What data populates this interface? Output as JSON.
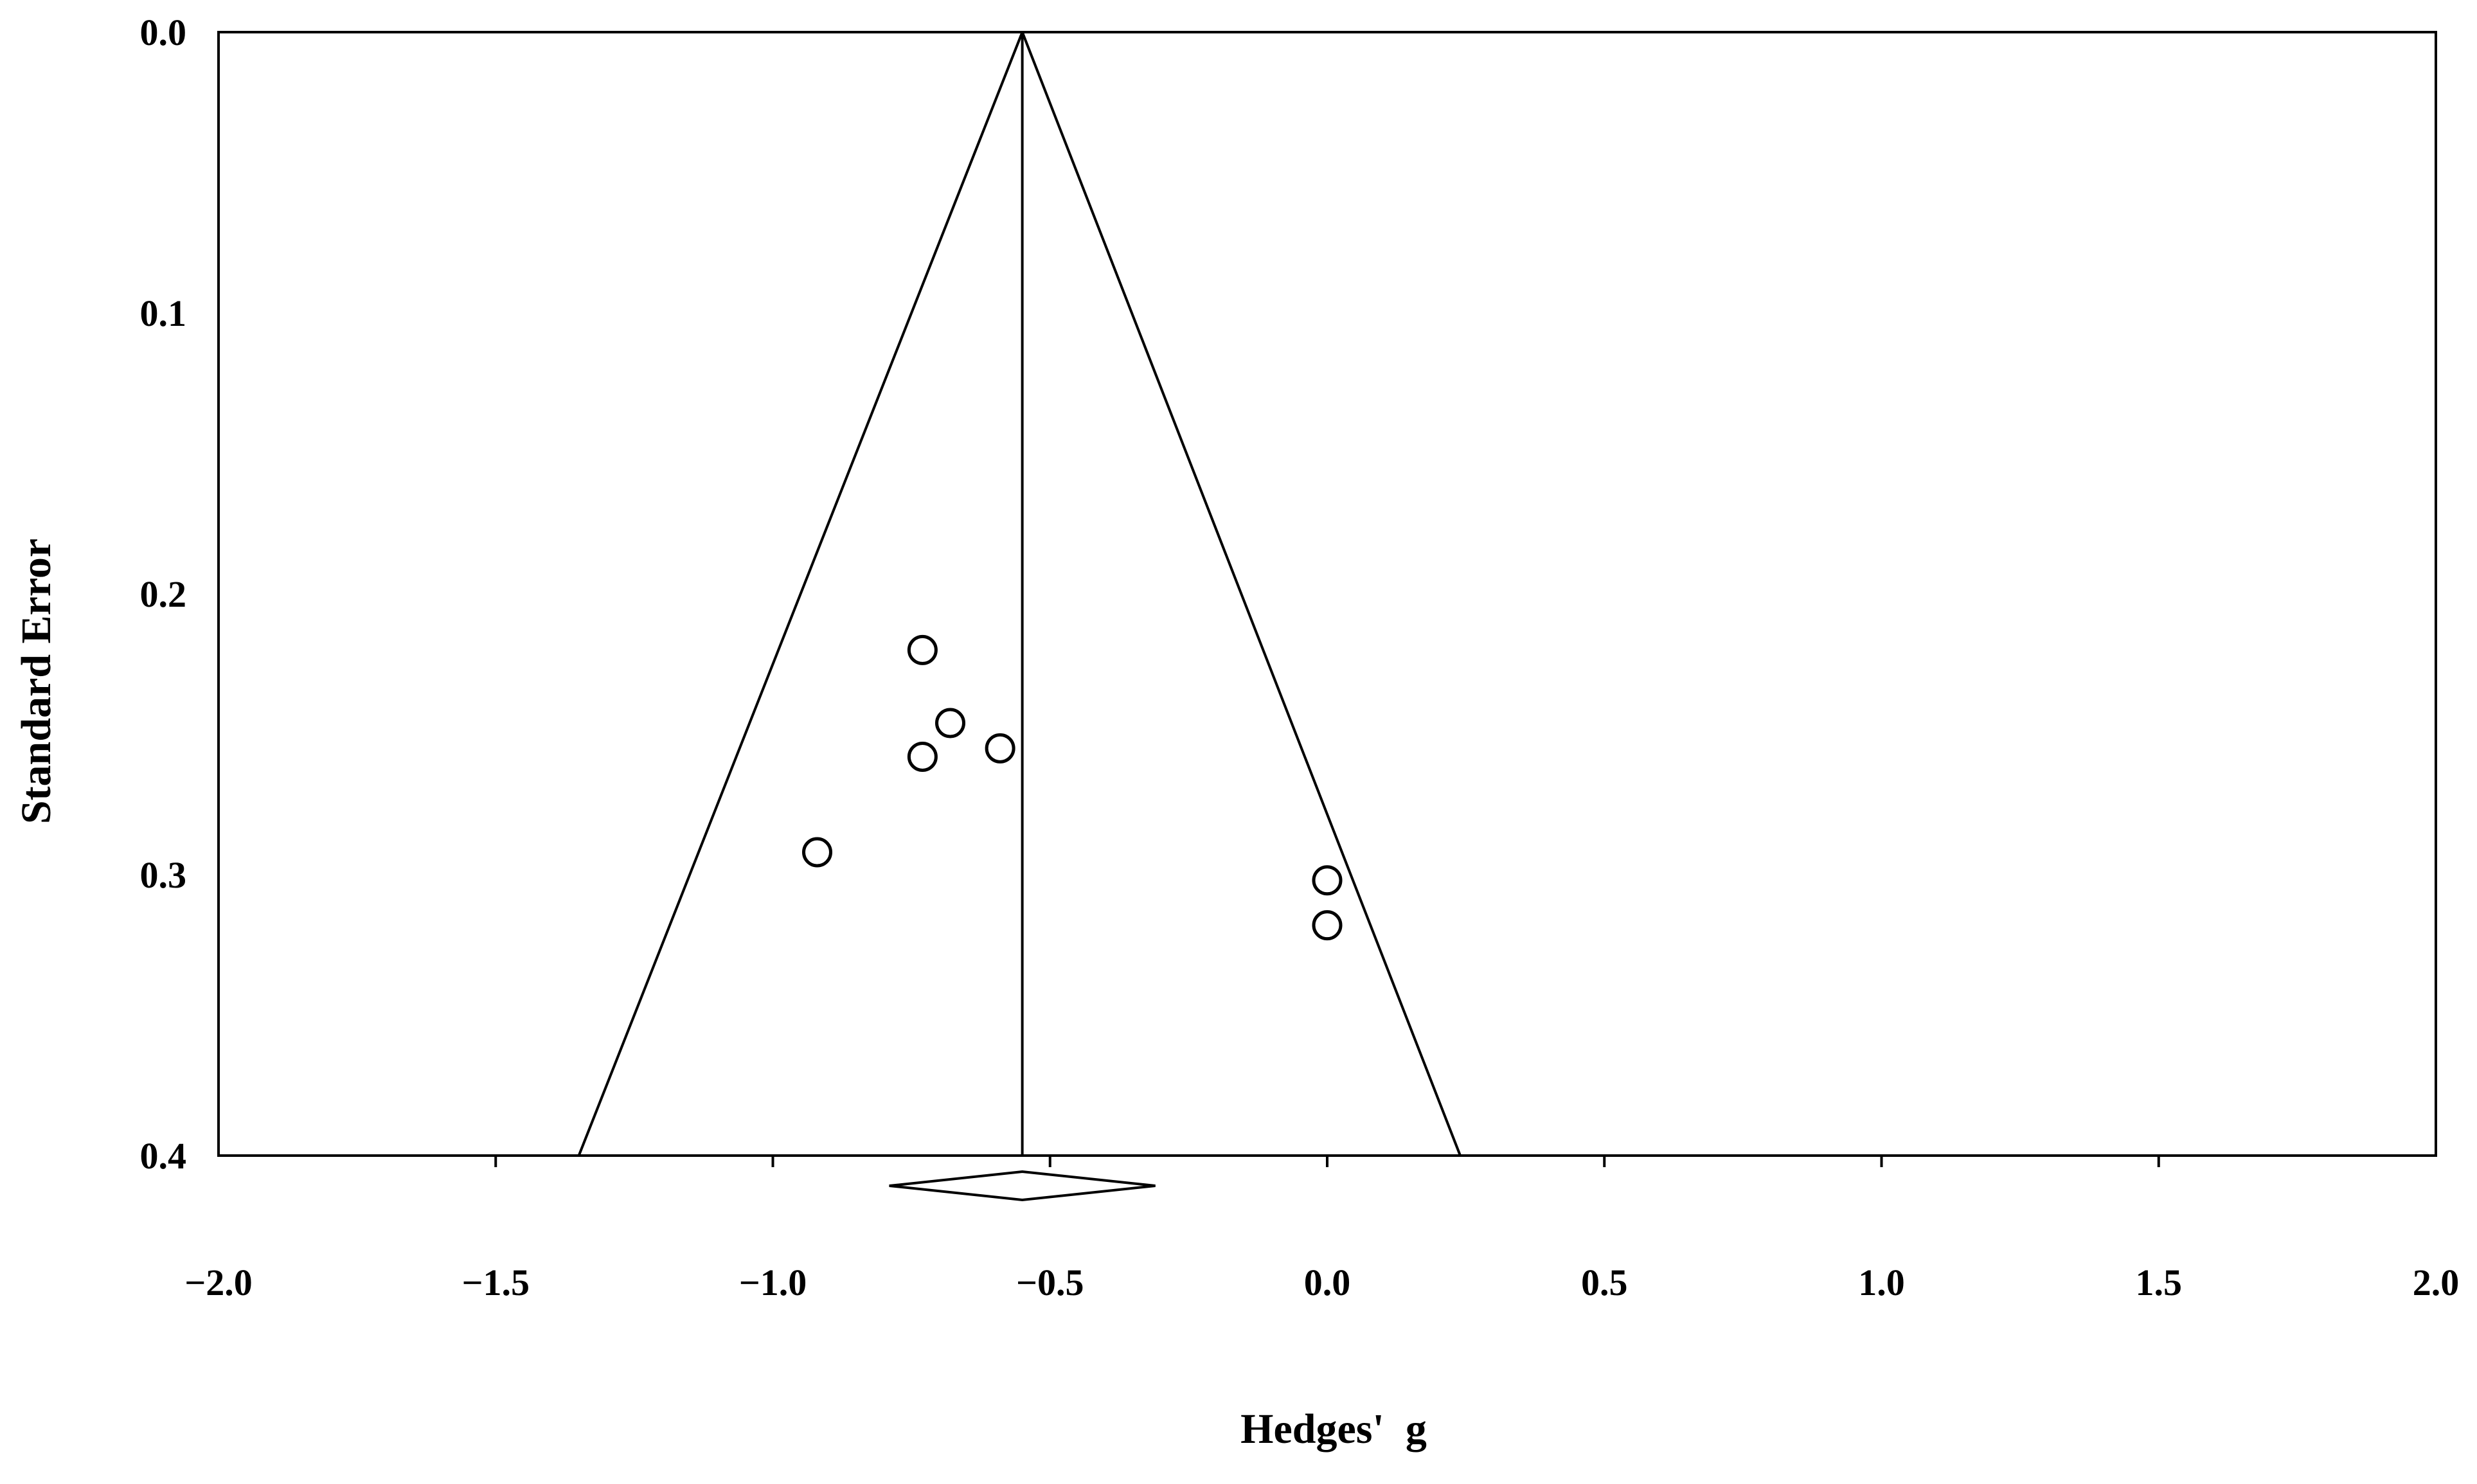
{
  "chart_data": {
    "type": "scatter",
    "subtype": "funnel-plot",
    "title": "",
    "xlabel": "Hedges'  g",
    "ylabel": "Standard Error",
    "xlim": [
      -2.0,
      2.0
    ],
    "ylim": [
      0.0,
      0.4
    ],
    "y_inverted": true,
    "x_ticks": [
      -2.0,
      -1.5,
      -1.0,
      -0.5,
      0.0,
      0.5,
      1.0,
      1.5,
      2.0
    ],
    "x_tick_labels": [
      "−2.0",
      "−1.5",
      "−1.0",
      "−0.5",
      "0.0",
      "0.5",
      "1.0",
      "1.5",
      "2.0"
    ],
    "y_ticks": [
      0.0,
      0.1,
      0.2,
      0.3,
      0.4
    ],
    "y_tick_labels": [
      "0.0",
      "0.1",
      "0.2",
      "0.3",
      "0.4"
    ],
    "grid": false,
    "legend": "none",
    "pooled_effect": -0.55,
    "funnel_base_at_se": 0.4,
    "funnel_base": [
      -1.35,
      0.24
    ],
    "summary_diamond": {
      "center": -0.55,
      "ci": [
        -0.79,
        -0.31
      ]
    },
    "points": [
      {
        "x": -0.73,
        "y": 0.22
      },
      {
        "x": -0.68,
        "y": 0.246
      },
      {
        "x": -0.73,
        "y": 0.258
      },
      {
        "x": -0.59,
        "y": 0.255
      },
      {
        "x": -0.92,
        "y": 0.292
      },
      {
        "x": 0.0,
        "y": 0.302
      },
      {
        "x": 0.0,
        "y": 0.318
      }
    ],
    "colors": {
      "line": "#000000",
      "marker_fill": "#ffffff",
      "background": "#ffffff"
    }
  }
}
